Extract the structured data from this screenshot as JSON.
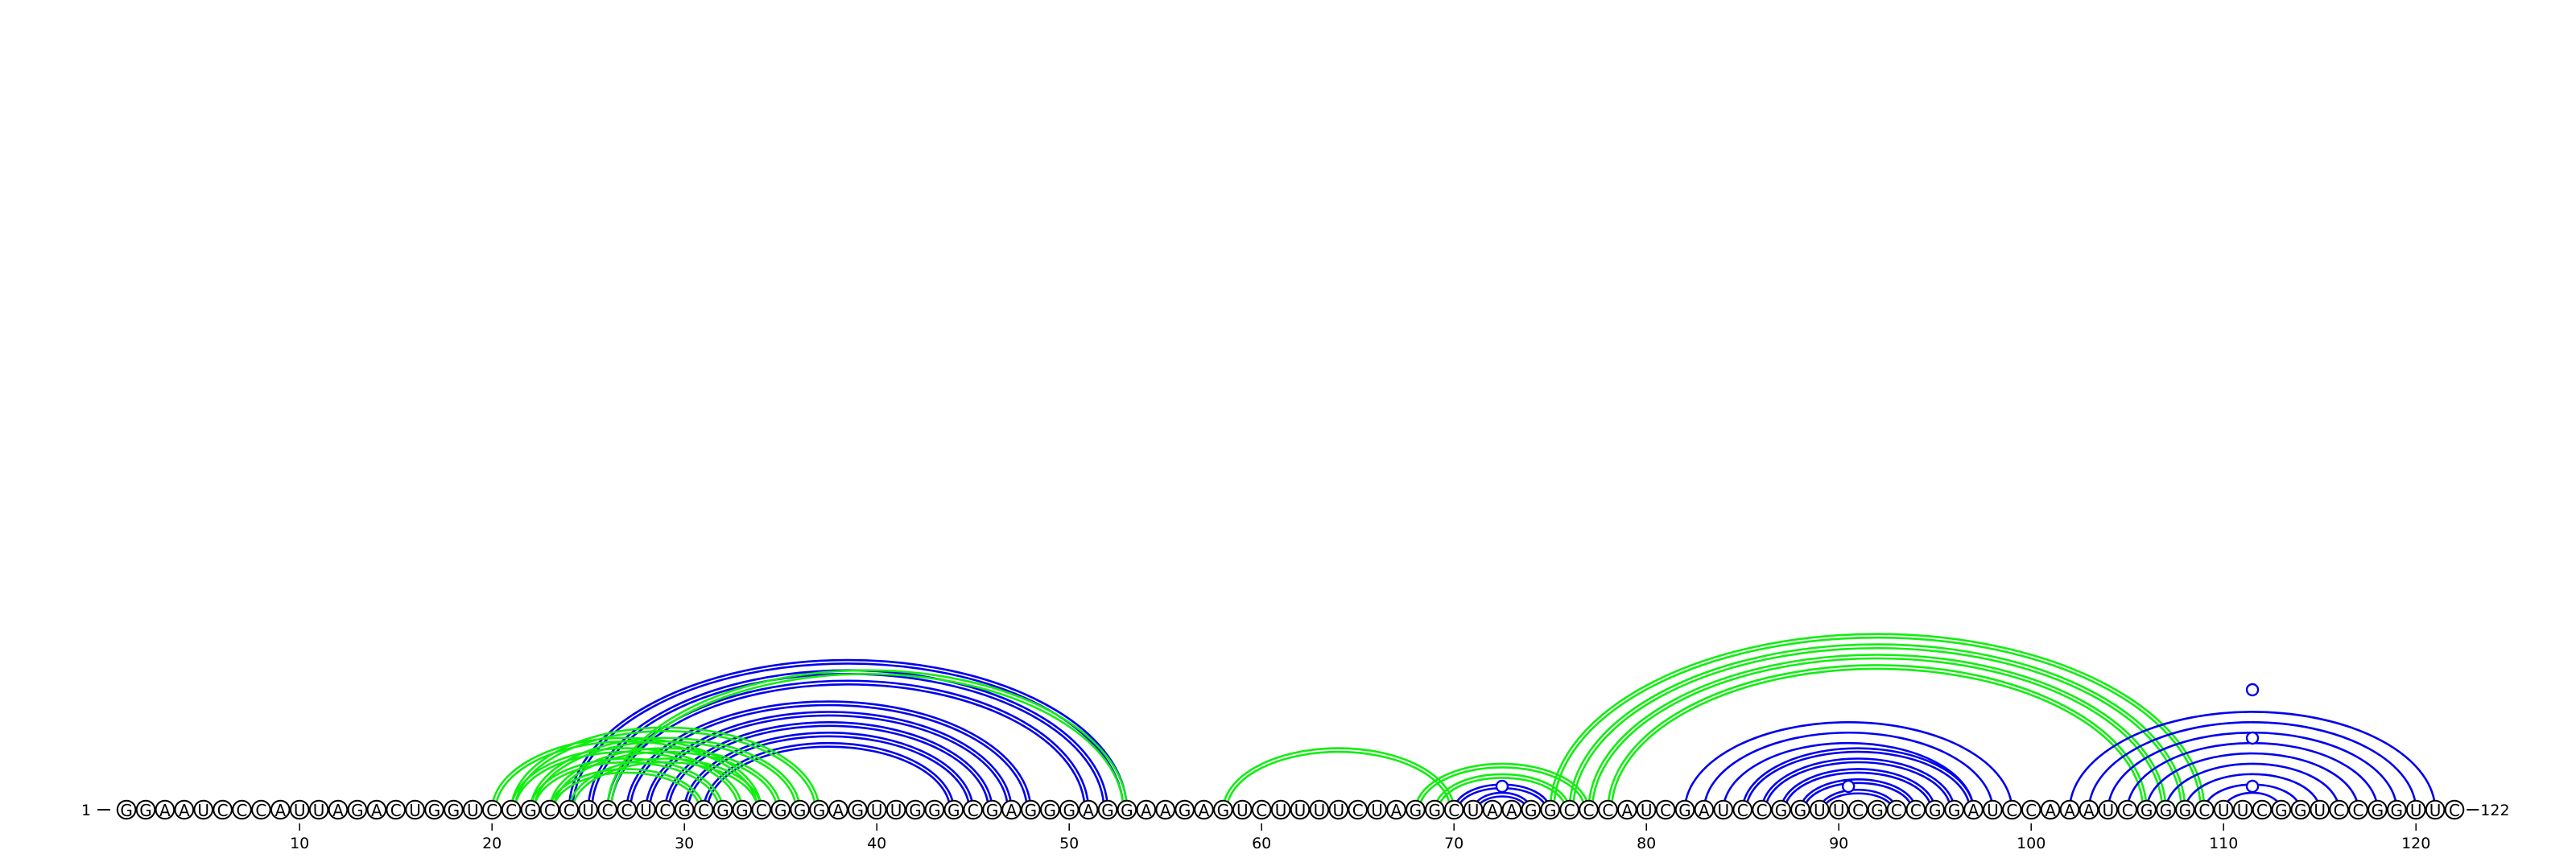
{
  "sequence": {
    "start_label": "1",
    "end_label": "122",
    "letters": "GGAAUCCCAUUAGACUGGUCCGCCUCCUCGCGGCGGGAGUUGGGCGAGGGAGGAAGAGUCUUUUCUAGGCUAAGGCCCAUCGAUCCGGUUCGCCGGAUCCAAAUCGGGCUUCGGUCCGGUUC"
  },
  "ticks": [
    {
      "pos": 10,
      "label": "10"
    },
    {
      "pos": 20,
      "label": "20"
    },
    {
      "pos": 30,
      "label": "30"
    },
    {
      "pos": 40,
      "label": "40"
    },
    {
      "pos": 50,
      "label": "50"
    },
    {
      "pos": 60,
      "label": "60"
    },
    {
      "pos": 70,
      "label": "70"
    },
    {
      "pos": 80,
      "label": "80"
    },
    {
      "pos": 90,
      "label": "90"
    },
    {
      "pos": 100,
      "label": "100"
    },
    {
      "pos": 110,
      "label": "110"
    },
    {
      "pos": 120,
      "label": "120"
    }
  ],
  "colors": {
    "blue": "#0000ee",
    "green": "#11ee11"
  },
  "pair_groups": [
    {
      "color": "blue",
      "double": true,
      "pairs": [
        [
          24,
          53
        ],
        [
          25,
          52
        ],
        [
          26,
          51
        ],
        [
          27,
          48
        ],
        [
          28,
          47
        ],
        [
          29,
          46
        ],
        [
          30,
          45
        ],
        [
          31,
          44
        ]
      ]
    },
    {
      "color": "green",
      "double": true,
      "pairs": [
        [
          26,
          53
        ]
      ]
    },
    {
      "color": "green",
      "double": true,
      "pairs": [
        [
          20,
          34
        ],
        [
          21,
          33
        ],
        [
          22,
          32
        ],
        [
          23,
          31
        ]
      ]
    },
    {
      "color": "green",
      "double": true,
      "pairs": [
        [
          21,
          37
        ],
        [
          22,
          36
        ],
        [
          23,
          35
        ],
        [
          24,
          34
        ]
      ]
    },
    {
      "color": "green",
      "double": true,
      "pairs": [
        [
          58,
          70
        ]
      ]
    },
    {
      "color": "green",
      "double": true,
      "pairs": [
        [
          68,
          77
        ],
        [
          69,
          76
        ]
      ]
    },
    {
      "color": "blue",
      "double": true,
      "pairs": [
        [
          70,
          75
        ],
        [
          71,
          74
        ]
      ]
    },
    {
      "color": "green",
      "double": true,
      "pairs": [
        [
          75,
          109
        ],
        [
          76,
          108
        ],
        [
          77,
          107
        ],
        [
          78,
          106
        ]
      ]
    },
    {
      "color": "blue",
      "double": true,
      "pairs": [
        [
          85,
          97
        ],
        [
          86,
          96
        ],
        [
          87,
          95
        ],
        [
          88,
          94
        ],
        [
          89,
          93
        ]
      ]
    },
    {
      "color": "blue",
      "double": false,
      "pairs": [
        [
          82,
          99
        ],
        [
          83,
          98
        ],
        [
          84,
          97
        ]
      ]
    },
    {
      "color": "blue",
      "double": false,
      "pairs": [
        [
          102,
          121
        ],
        [
          103,
          120
        ],
        [
          104,
          119
        ],
        [
          105,
          118
        ],
        [
          106,
          117
        ],
        [
          107,
          116
        ],
        [
          108,
          115
        ],
        [
          109,
          114
        ],
        [
          110,
          113
        ]
      ]
    }
  ],
  "markers": [
    {
      "pos": 72.5,
      "level": 1,
      "color": "blue"
    },
    {
      "pos": 90.5,
      "level": 1,
      "color": "blue"
    },
    {
      "pos": 111.5,
      "level": 1,
      "color": "blue"
    },
    {
      "pos": 111.5,
      "level": 3,
      "color": "blue"
    },
    {
      "pos": 111.5,
      "level": 5,
      "color": "blue"
    }
  ]
}
